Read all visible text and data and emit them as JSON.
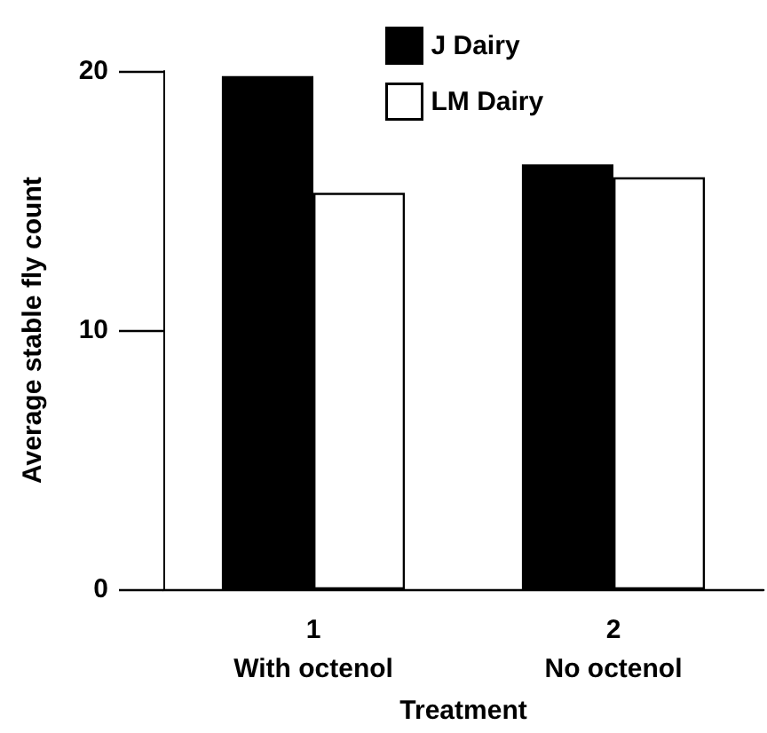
{
  "chart_data": {
    "type": "bar",
    "xlabel": "Treatment",
    "ylabel": "Average stable fly count",
    "categories": [
      "1\nWith octenol",
      "2\nNo octenol"
    ],
    "series": [
      {
        "name": "J Dairy",
        "color": "#000000",
        "values": [
          19.8,
          16.4
        ]
      },
      {
        "name": "LM Dairy",
        "color": "#ffffff",
        "values": [
          15.3,
          15.9
        ]
      }
    ],
    "ylim": [
      0,
      20
    ],
    "yticks": [
      0,
      10,
      20
    ],
    "grid": false,
    "legend": "top right"
  }
}
